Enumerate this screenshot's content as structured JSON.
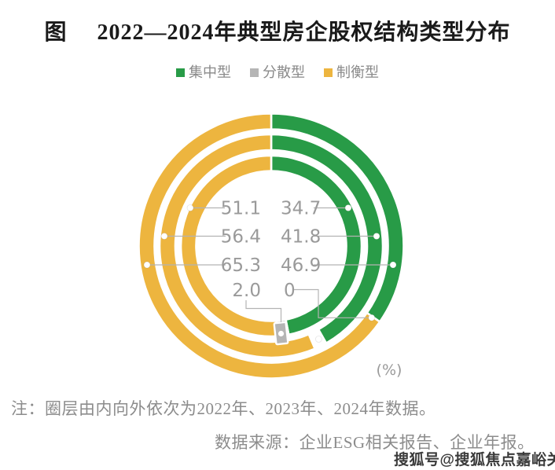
{
  "title": {
    "figure_label": "图",
    "text": "2022—2024年典型房企股权结构类型分布"
  },
  "legend": [
    {
      "label": "集中型",
      "color": "#289B47"
    },
    {
      "label": "分散型",
      "color": "#B5B5B5"
    },
    {
      "label": "制衡型",
      "color": "#EDB53F"
    }
  ],
  "unit_label": "(%)",
  "notes": {
    "ring_note": "注：圈层由内向外依次为2022年、2023年、2024年数据。",
    "source": "数据来源：企业ESG相关报告、企业年报。"
  },
  "watermark": "搜狐号@搜狐焦点嘉峪关站",
  "chart_data": {
    "type": "pie",
    "variant": "concentric-donut-3-rings",
    "unit": "%",
    "title": "2022—2024年典型房企股权结构类型分布",
    "ring_order_note": "圈层由内向外依次为2022年、2023年、2024年数据",
    "categories": [
      "集中型",
      "分散型",
      "制衡型"
    ],
    "colors": {
      "集中型": "#289B47",
      "分散型": "#B5B5B5",
      "制衡型": "#EDB53F"
    },
    "rings": [
      {
        "year": "2022",
        "position": "inner",
        "values": {
          "集中型": 46.9,
          "分散型": 2.0,
          "制衡型": 51.1
        }
      },
      {
        "year": "2023",
        "position": "middle",
        "values": {
          "集中型": 41.8,
          "制衡型": 56.4
        }
      },
      {
        "year": "2024",
        "position": "outer",
        "values": {
          "集中型": 34.7,
          "分散型": 0,
          "制衡型": 65.3
        }
      }
    ],
    "center_label_rows": [
      {
        "left": "51.1",
        "right": "34.7"
      },
      {
        "left": "56.4",
        "right": "41.8"
      },
      {
        "left": "65.3",
        "right": "46.9"
      },
      {
        "left": "2.0",
        "right": "0"
      }
    ]
  }
}
